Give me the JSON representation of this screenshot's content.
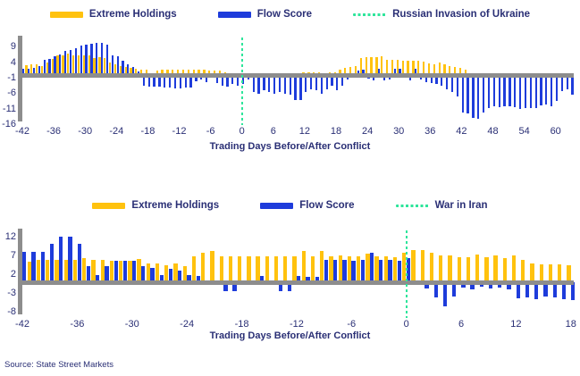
{
  "source_note": "Source: State Street Markets",
  "colors": {
    "extreme_holdings": "#FFC20E",
    "flow_score": "#1E3CDB",
    "event_line": "#2EE59B",
    "axis": "#8D8D8D",
    "text": "#2A2F75"
  },
  "chart_data": [
    {
      "type": "bar",
      "title": "",
      "xlabel": "Trading Days Before/After Conflict",
      "x_range_days": [
        -42,
        63
      ],
      "x": [
        -42,
        -41,
        -40,
        -39,
        -38,
        -37,
        -36,
        -35,
        -34,
        -33,
        -32,
        -31,
        -30,
        -29,
        -28,
        -27,
        -26,
        -25,
        -24,
        -23,
        -22,
        -21,
        -20,
        -19,
        -18,
        -17,
        -16,
        -15,
        -14,
        -13,
        -12,
        -11,
        -10,
        -9,
        -8,
        -7,
        -6,
        -5,
        -4,
        -3,
        -2,
        -1,
        0,
        1,
        2,
        3,
        4,
        5,
        6,
        7,
        8,
        9,
        10,
        11,
        12,
        13,
        14,
        15,
        16,
        17,
        18,
        19,
        20,
        21,
        22,
        23,
        24,
        25,
        26,
        27,
        28,
        29,
        30,
        31,
        32,
        33,
        34,
        35,
        36,
        37,
        38,
        39,
        40,
        41,
        42,
        43,
        44,
        45,
        46,
        47,
        48,
        49,
        50,
        51,
        52,
        53,
        54,
        55,
        56,
        57,
        58,
        59,
        60,
        61,
        62,
        63
      ],
      "series": [
        {
          "name": "Extreme Holdings",
          "values": [
            -1.5,
            3.3,
            3.4,
            3.6,
            2.8,
            4.0,
            5.2,
            6.2,
            6.4,
            6.8,
            6.4,
            6.2,
            6.3,
            6.2,
            5.6,
            5.8,
            5.6,
            4.0,
            3.5,
            3.0,
            2.5,
            2.2,
            2.0,
            1.8,
            1.6,
            0.6,
            1.5,
            1.8,
            1.8,
            1.8,
            1.8,
            1.8,
            1.8,
            1.8,
            1.8,
            1.6,
            1.5,
            1.5,
            1.3,
            1.0,
            0.6,
            0.5,
            0.4,
            0,
            0,
            0,
            0,
            0,
            0,
            0,
            0,
            0,
            0,
            0,
            0.8,
            0.8,
            0.8,
            0.8,
            0.6,
            0.9,
            1.0,
            1.8,
            2.2,
            2.5,
            2.8,
            5.5,
            5.8,
            5.8,
            5.8,
            6.0,
            4.8,
            4.8,
            4.8,
            4.6,
            4.6,
            4.6,
            4.6,
            4.2,
            3.8,
            3.6,
            4.0,
            3.4,
            3.0,
            2.6,
            2.3,
            1.8,
            0,
            0,
            0,
            0,
            0,
            0,
            0,
            0,
            0,
            0,
            0,
            0,
            0,
            0,
            0,
            0,
            0,
            0,
            0,
            0
          ]
        },
        {
          "name": "Flow Score",
          "values": [
            2.0,
            2.0,
            2.3,
            2.8,
            5.0,
            5.3,
            6.0,
            6.5,
            7.8,
            8.2,
            8.6,
            9.5,
            9.9,
            10.2,
            10.4,
            10.4,
            9.8,
            6.2,
            6.0,
            4.5,
            3.5,
            2.5,
            1.2,
            -3.5,
            -3.8,
            -3.8,
            -3.8,
            -4.0,
            -4.0,
            -4.2,
            -4.2,
            -4.0,
            -4.0,
            -2.0,
            -1.5,
            -2.2,
            -0.4,
            -2.5,
            -3.4,
            -3.8,
            -3.0,
            -3.6,
            -3.0,
            -1.3,
            -5.5,
            -6.0,
            -5.0,
            -5.6,
            -6.0,
            -5.5,
            -6.0,
            -6.2,
            -8.0,
            -8.0,
            -5.5,
            -4.6,
            -5.0,
            -6.0,
            -4.6,
            -3.4,
            -4.8,
            -3.4,
            -1.4,
            -0.8,
            1.4,
            1.6,
            -1.2,
            -1.8,
            2.0,
            -1.8,
            -1.5,
            2.1,
            2.1,
            -1.0,
            -1.8,
            2.0,
            -1.4,
            -2.4,
            -2.5,
            -2.8,
            -3.5,
            -4.5,
            -5.5,
            -7.0,
            -12.0,
            -12.5,
            -13.8,
            -14.0,
            -12.2,
            -10.6,
            -10.0,
            -10.5,
            -10.0,
            -10.0,
            -10.4,
            -11.0,
            -10.6,
            -10.6,
            -10.6,
            -9.8,
            -9.4,
            -10.0,
            -8.4,
            -5.2,
            -4.6,
            -6.4
          ]
        }
      ],
      "event_line": {
        "label": "Russian Invasion of Ukraine",
        "x": 0,
        "style": "dotted"
      },
      "yticks": [
        9,
        4,
        -1,
        -6,
        -11,
        -16
      ],
      "xticks": [
        -42,
        -36,
        -30,
        -24,
        -18,
        -12,
        -6,
        0,
        6,
        12,
        18,
        24,
        30,
        36,
        42,
        48,
        54,
        60
      ],
      "ylim": [
        -16,
        10.5
      ],
      "grid": false,
      "legend_position": "top-center"
    },
    {
      "type": "bar",
      "title": "",
      "xlabel": "Trading Days Before/After Conflict",
      "x_range_days": [
        -42,
        18
      ],
      "x": [
        -42,
        -41,
        -40,
        -39,
        -38,
        -37,
        -36,
        -35,
        -34,
        -33,
        -32,
        -31,
        -30,
        -29,
        -28,
        -27,
        -26,
        -25,
        -24,
        -23,
        -22,
        -21,
        -20,
        -19,
        -18,
        -17,
        -16,
        -15,
        -14,
        -13,
        -12,
        -11,
        -10,
        -9,
        -8,
        -7,
        -6,
        -5,
        -4,
        -3,
        -2,
        -1,
        0,
        1,
        2,
        3,
        4,
        5,
        6,
        7,
        8,
        9,
        10,
        11,
        12,
        13,
        14,
        15,
        16,
        17,
        18
      ],
      "series": [
        {
          "name": "Extreme Holdings",
          "values": [
            5.0,
            5.4,
            6.0,
            6.0,
            6.0,
            6.0,
            6.0,
            6.4,
            6.0,
            6.0,
            5.8,
            5.8,
            5.8,
            6.2,
            5.0,
            5.0,
            4.6,
            5.0,
            4.2,
            7.0,
            8.0,
            8.3,
            7.0,
            7.0,
            7.0,
            7.0,
            7.0,
            7.0,
            7.0,
            7.0,
            7.0,
            8.3,
            7.0,
            8.3,
            7.0,
            7.2,
            7.0,
            7.0,
            7.6,
            7.0,
            7.0,
            6.8,
            7.8,
            8.6,
            8.6,
            7.8,
            7.2,
            7.2,
            6.8,
            6.8,
            7.5,
            6.8,
            7.2,
            6.5,
            7.2,
            6.0,
            5.0,
            4.8,
            4.8,
            4.8,
            4.6
          ]
        },
        {
          "name": "Flow Score",
          "values": [
            8.2,
            8.2,
            8.2,
            10.2,
            12.2,
            12.2,
            10.4,
            4.2,
            1.9,
            4.2,
            5.8,
            5.8,
            5.8,
            4.2,
            3.9,
            1.9,
            3.5,
            3.2,
            1.8,
            1.6,
            0,
            0,
            -2.3,
            -2.3,
            0,
            0,
            1.6,
            0,
            -2.3,
            -2.3,
            1.6,
            1.5,
            1.4,
            5.9,
            5.9,
            5.9,
            5.8,
            6.0,
            8.0,
            5.9,
            5.9,
            5.8,
            6.5,
            0,
            -1.6,
            -4.1,
            -6.5,
            -3.9,
            -1.5,
            -1.9,
            -1.1,
            -1.6,
            -1.5,
            -1.9,
            -4.3,
            -4.1,
            -4.6,
            -3.9,
            -4.1,
            -4.6,
            -4.7
          ]
        }
      ],
      "event_line": {
        "label": "War in Iran",
        "x": 0,
        "style": "dotted"
      },
      "yticks": [
        12,
        7,
        2,
        -3,
        -8
      ],
      "xticks": [
        -42,
        -36,
        -30,
        -24,
        -18,
        -12,
        -6,
        0,
        6,
        12,
        18
      ],
      "ylim": [
        -8,
        12.5
      ],
      "grid": false,
      "legend_position": "top-center"
    }
  ]
}
